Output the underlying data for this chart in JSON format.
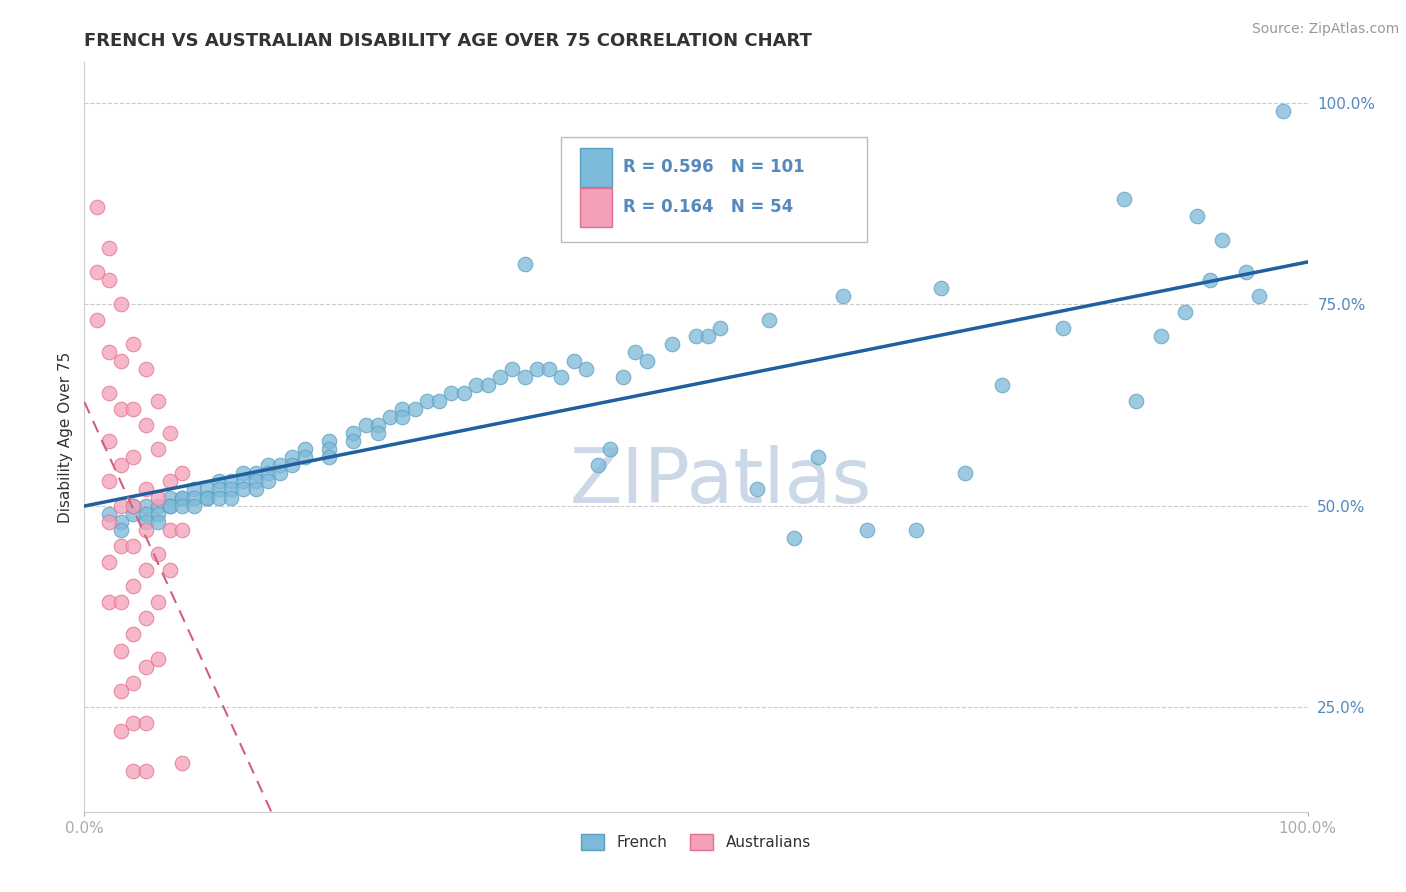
{
  "title": "FRENCH VS AUSTRALIAN DISABILITY AGE OVER 75 CORRELATION CHART",
  "source_text": "Source: ZipAtlas.com",
  "ylabel": "Disability Age Over 75",
  "french_R": 0.596,
  "french_N": 101,
  "australian_R": 0.164,
  "australian_N": 54,
  "french_color": "#7db9d8",
  "french_edge_color": "#5a9fc0",
  "australian_color": "#f4a0b8",
  "australian_edge_color": "#e07090",
  "trend_french_color": "#2060a0",
  "trend_australian_color": "#d06080",
  "watermark": "ZIPatlas",
  "xlim": [
    0.0,
    1.0
  ],
  "ylim": [
    0.12,
    1.05
  ],
  "x_ticks": [
    0.0,
    1.0
  ],
  "x_tick_labels": [
    "0.0%",
    "100.0%"
  ],
  "y_ticks": [
    0.25,
    0.5,
    0.75,
    1.0
  ],
  "y_tick_labels": [
    "25.0%",
    "50.0%",
    "75.0%",
    "100.0%"
  ],
  "french_scatter": [
    [
      0.02,
      0.49
    ],
    [
      0.03,
      0.48
    ],
    [
      0.03,
      0.47
    ],
    [
      0.04,
      0.49
    ],
    [
      0.04,
      0.5
    ],
    [
      0.05,
      0.5
    ],
    [
      0.05,
      0.49
    ],
    [
      0.05,
      0.48
    ],
    [
      0.06,
      0.5
    ],
    [
      0.06,
      0.49
    ],
    [
      0.06,
      0.48
    ],
    [
      0.07,
      0.51
    ],
    [
      0.07,
      0.5
    ],
    [
      0.07,
      0.5
    ],
    [
      0.08,
      0.51
    ],
    [
      0.08,
      0.51
    ],
    [
      0.08,
      0.5
    ],
    [
      0.09,
      0.52
    ],
    [
      0.09,
      0.51
    ],
    [
      0.09,
      0.5
    ],
    [
      0.1,
      0.52
    ],
    [
      0.1,
      0.51
    ],
    [
      0.1,
      0.51
    ],
    [
      0.11,
      0.53
    ],
    [
      0.11,
      0.52
    ],
    [
      0.11,
      0.51
    ],
    [
      0.12,
      0.53
    ],
    [
      0.12,
      0.52
    ],
    [
      0.12,
      0.51
    ],
    [
      0.13,
      0.54
    ],
    [
      0.13,
      0.53
    ],
    [
      0.13,
      0.52
    ],
    [
      0.14,
      0.54
    ],
    [
      0.14,
      0.53
    ],
    [
      0.14,
      0.52
    ],
    [
      0.15,
      0.55
    ],
    [
      0.15,
      0.54
    ],
    [
      0.15,
      0.53
    ],
    [
      0.16,
      0.55
    ],
    [
      0.16,
      0.54
    ],
    [
      0.17,
      0.56
    ],
    [
      0.17,
      0.55
    ],
    [
      0.18,
      0.57
    ],
    [
      0.18,
      0.56
    ],
    [
      0.2,
      0.58
    ],
    [
      0.2,
      0.57
    ],
    [
      0.2,
      0.56
    ],
    [
      0.22,
      0.59
    ],
    [
      0.22,
      0.58
    ],
    [
      0.23,
      0.6
    ],
    [
      0.24,
      0.6
    ],
    [
      0.24,
      0.59
    ],
    [
      0.25,
      0.61
    ],
    [
      0.26,
      0.62
    ],
    [
      0.26,
      0.61
    ],
    [
      0.27,
      0.62
    ],
    [
      0.28,
      0.63
    ],
    [
      0.29,
      0.63
    ],
    [
      0.3,
      0.64
    ],
    [
      0.31,
      0.64
    ],
    [
      0.32,
      0.65
    ],
    [
      0.33,
      0.65
    ],
    [
      0.34,
      0.66
    ],
    [
      0.35,
      0.67
    ],
    [
      0.36,
      0.66
    ],
    [
      0.37,
      0.67
    ],
    [
      0.38,
      0.67
    ],
    [
      0.39,
      0.66
    ],
    [
      0.4,
      0.68
    ],
    [
      0.41,
      0.67
    ],
    [
      0.42,
      0.55
    ],
    [
      0.43,
      0.57
    ],
    [
      0.44,
      0.66
    ],
    [
      0.45,
      0.69
    ],
    [
      0.46,
      0.68
    ],
    [
      0.48,
      0.7
    ],
    [
      0.5,
      0.71
    ],
    [
      0.51,
      0.71
    ],
    [
      0.52,
      0.72
    ],
    [
      0.55,
      0.52
    ],
    [
      0.56,
      0.73
    ],
    [
      0.58,
      0.46
    ],
    [
      0.6,
      0.56
    ],
    [
      0.62,
      0.76
    ],
    [
      0.64,
      0.47
    ],
    [
      0.68,
      0.47
    ],
    [
      0.7,
      0.77
    ],
    [
      0.72,
      0.54
    ],
    [
      0.75,
      0.65
    ],
    [
      0.8,
      0.72
    ],
    [
      0.85,
      0.88
    ],
    [
      0.86,
      0.63
    ],
    [
      0.88,
      0.71
    ],
    [
      0.9,
      0.74
    ],
    [
      0.91,
      0.86
    ],
    [
      0.92,
      0.78
    ],
    [
      0.93,
      0.83
    ],
    [
      0.95,
      0.79
    ],
    [
      0.96,
      0.76
    ],
    [
      0.98,
      0.99
    ],
    [
      0.36,
      0.8
    ]
  ],
  "australian_scatter": [
    [
      0.01,
      0.87
    ],
    [
      0.01,
      0.79
    ],
    [
      0.01,
      0.73
    ],
    [
      0.02,
      0.82
    ],
    [
      0.02,
      0.78
    ],
    [
      0.02,
      0.69
    ],
    [
      0.02,
      0.64
    ],
    [
      0.02,
      0.58
    ],
    [
      0.02,
      0.53
    ],
    [
      0.02,
      0.48
    ],
    [
      0.02,
      0.43
    ],
    [
      0.02,
      0.38
    ],
    [
      0.03,
      0.75
    ],
    [
      0.03,
      0.68
    ],
    [
      0.03,
      0.62
    ],
    [
      0.03,
      0.55
    ],
    [
      0.03,
      0.5
    ],
    [
      0.03,
      0.45
    ],
    [
      0.03,
      0.38
    ],
    [
      0.03,
      0.32
    ],
    [
      0.03,
      0.27
    ],
    [
      0.03,
      0.22
    ],
    [
      0.04,
      0.7
    ],
    [
      0.04,
      0.62
    ],
    [
      0.04,
      0.56
    ],
    [
      0.04,
      0.5
    ],
    [
      0.04,
      0.45
    ],
    [
      0.04,
      0.4
    ],
    [
      0.04,
      0.34
    ],
    [
      0.04,
      0.28
    ],
    [
      0.04,
      0.23
    ],
    [
      0.04,
      0.17
    ],
    [
      0.05,
      0.67
    ],
    [
      0.05,
      0.6
    ],
    [
      0.05,
      0.52
    ],
    [
      0.05,
      0.47
    ],
    [
      0.05,
      0.42
    ],
    [
      0.05,
      0.36
    ],
    [
      0.05,
      0.3
    ],
    [
      0.05,
      0.23
    ],
    [
      0.05,
      0.17
    ],
    [
      0.06,
      0.63
    ],
    [
      0.06,
      0.57
    ],
    [
      0.06,
      0.51
    ],
    [
      0.06,
      0.44
    ],
    [
      0.06,
      0.38
    ],
    [
      0.06,
      0.31
    ],
    [
      0.07,
      0.59
    ],
    [
      0.07,
      0.53
    ],
    [
      0.07,
      0.47
    ],
    [
      0.07,
      0.42
    ],
    [
      0.08,
      0.54
    ],
    [
      0.08,
      0.47
    ],
    [
      0.08,
      0.18
    ]
  ],
  "legend_french_label": "French",
  "legend_australian_label": "Australians",
  "title_color": "#333333",
  "tick_color": "#5588bb",
  "grid_color": "#cccccc",
  "watermark_color": "#ccd8e8",
  "title_fontsize": 13,
  "label_fontsize": 11,
  "tick_fontsize": 11,
  "source_fontsize": 10
}
